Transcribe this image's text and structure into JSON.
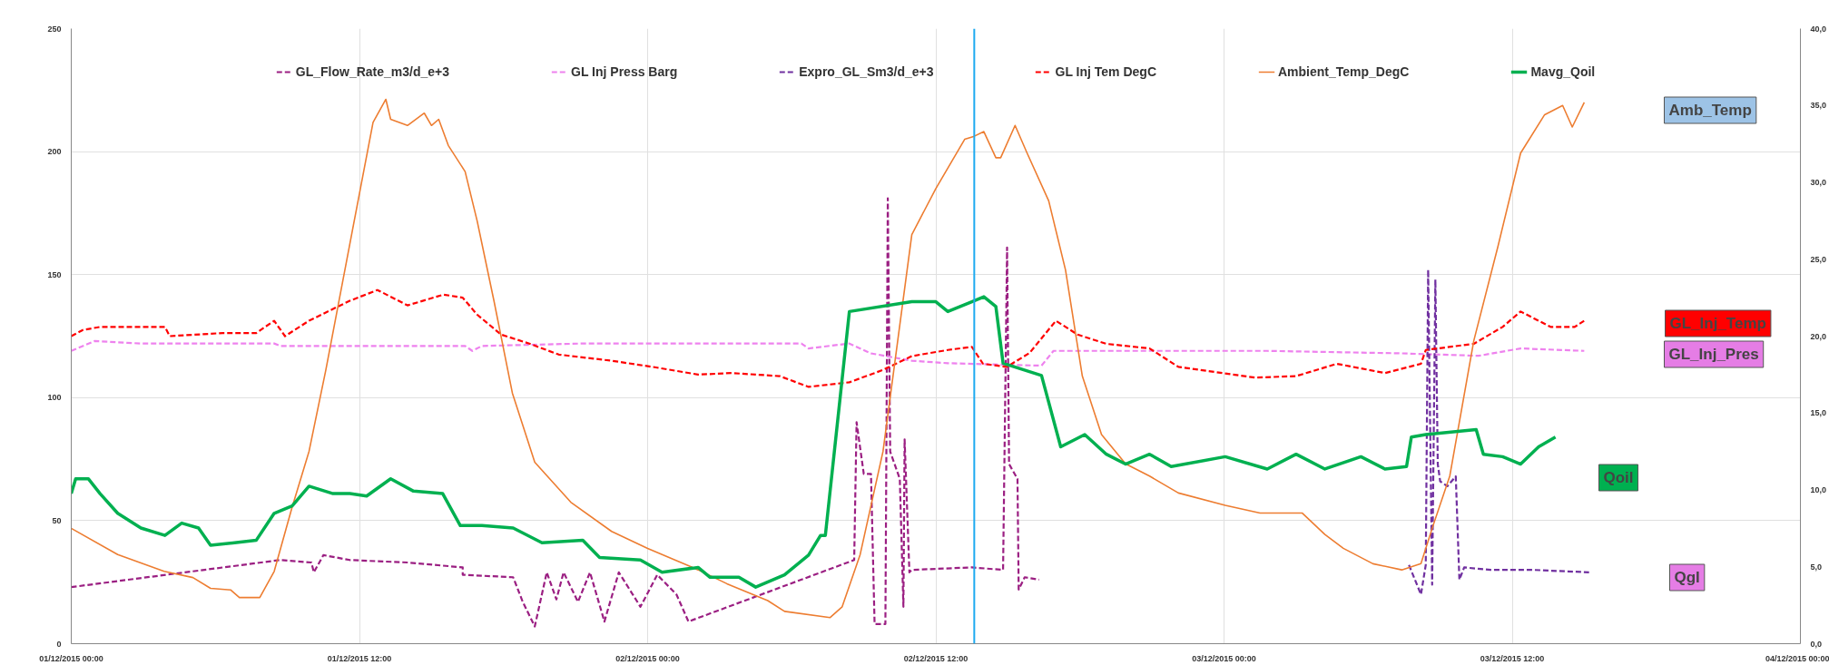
{
  "chart_data": {
    "type": "line",
    "xlim": [
      "2015-12-01T00:00",
      "2015-12-04T00:00"
    ],
    "xticks": [
      {
        "value": "2015-12-01T00:00",
        "label": "01/12/2015 00:00"
      },
      {
        "value": "2015-12-01T12:00",
        "label": "01/12/2015 12:00"
      },
      {
        "value": "2015-12-02T00:00",
        "label": "02/12/2015 00:00"
      },
      {
        "value": "2015-12-02T12:00",
        "label": "02/12/2015 12:00"
      },
      {
        "value": "2015-12-03T00:00",
        "label": "03/12/2015 00:00"
      },
      {
        "value": "2015-12-03T12:00",
        "label": "03/12/2015 12:00"
      },
      {
        "value": "2015-12-04T00:00",
        "label": "04/12/2015 00:00"
      }
    ],
    "ylim": [
      0,
      250
    ],
    "yticks": [
      0,
      50,
      100,
      150,
      200,
      250
    ],
    "y2lim": [
      0,
      40
    ],
    "y2ticks": [
      {
        "value": 0,
        "label": "0,0"
      },
      {
        "value": 5,
        "label": "5,0"
      },
      {
        "value": 10,
        "label": "10,0"
      },
      {
        "value": 15,
        "label": "15,0"
      },
      {
        "value": 20,
        "label": "20,0"
      },
      {
        "value": 25,
        "label": "25,0"
      },
      {
        "value": 30,
        "label": "30,0"
      },
      {
        "value": 35,
        "label": "35,0"
      },
      {
        "value": 40,
        "label": "40,0"
      }
    ],
    "grid": true,
    "legend": "top",
    "marker": "none",
    "series": [
      {
        "name": "GL_Flow_Rate_m3/d_e+3",
        "color": "#9b1f82",
        "line_style": "dashed",
        "x": [
          "2015-12-01T00:00",
          "2015-12-01T08:42",
          "2015-12-01T10:00",
          "2015-12-01T10:06",
          "2015-12-01T10:30",
          "2015-12-01T11:36",
          "2015-12-01T14:00",
          "2015-12-01T16:18",
          "2015-12-01T16:18",
          "2015-12-01T18:24",
          "2015-12-01T18:48",
          "2015-12-01T19:18",
          "2015-12-01T19:48",
          "2015-12-01T20:12",
          "2015-12-01T20:30",
          "2015-12-01T21:06",
          "2015-12-01T21:36",
          "2015-12-01T22:12",
          "2015-12-01T22:48",
          "2015-12-01T23:42",
          "2015-12-02T00:24",
          "2015-12-02T01:12",
          "2015-12-02T01:42",
          "2015-12-02T08:36",
          "2015-12-02T08:42",
          "2015-12-02T09:00",
          "2015-12-02T09:18",
          "2015-12-02T09:27",
          "2015-12-02T09:54",
          "2015-12-02T10:00",
          "2015-12-02T10:06",
          "2015-12-02T10:30",
          "2015-12-02T10:39",
          "2015-12-02T10:42",
          "2015-12-02T10:54",
          "2015-12-02T11:00",
          "2015-12-02T13:30",
          "2015-12-02T14:48",
          "2015-12-02T14:58",
          "2015-12-02T15:03",
          "2015-12-02T15:24",
          "2015-12-02T15:27",
          "2015-12-02T15:42",
          "2015-12-02T16:18"
        ],
        "values": [
          23,
          34,
          33,
          29,
          36,
          34,
          33,
          31,
          28,
          27,
          17,
          7,
          29,
          18,
          29,
          17,
          29,
          9,
          29,
          15,
          28,
          20,
          9,
          34,
          90,
          69,
          69,
          8,
          8,
          181,
          78,
          67,
          15,
          83,
          29,
          30,
          31,
          30,
          161,
          73,
          67,
          22,
          27,
          26
        ]
      },
      {
        "name": "GL Inj Press Barg",
        "color": "#ee82ee",
        "line_style": "dashed",
        "x": [
          "2015-12-01T00:00",
          "2015-12-01T00:58",
          "2015-12-01T02:54",
          "2015-12-01T08:27",
          "2015-12-01T08:42",
          "2015-12-01T12:06",
          "2015-12-01T16:24",
          "2015-12-01T16:42",
          "2015-12-01T17:06",
          "2015-12-01T21:18",
          "2015-12-02T06:24",
          "2015-12-02T06:42",
          "2015-12-02T08:24",
          "2015-12-02T09:18",
          "2015-12-02T11:00",
          "2015-12-02T12:30",
          "2015-12-02T16:24",
          "2015-12-02T16:54",
          "2015-12-03T01:48",
          "2015-12-03T07:24",
          "2015-12-03T10:36",
          "2015-12-03T12:21",
          "2015-12-03T15:00"
        ],
        "values": [
          119,
          123,
          122,
          122,
          121,
          121,
          121,
          119,
          121,
          122,
          122,
          120,
          122,
          118,
          115,
          114,
          113,
          119,
          119,
          118,
          117,
          120,
          119
        ]
      },
      {
        "name": "Expro_GL_Sm3/d_e+3",
        "color": "#7030a0",
        "line_style": "dashed",
        "x": [
          "2015-12-03T07:42",
          "2015-12-03T08:12",
          "2015-12-03T08:24",
          "2015-12-03T08:30",
          "2015-12-03T08:40",
          "2015-12-03T08:48",
          "2015-12-03T08:54",
          "2015-12-03T09:00",
          "2015-12-03T09:18",
          "2015-12-03T09:39",
          "2015-12-03T09:48",
          "2015-12-03T10:00",
          "2015-12-03T11:06",
          "2015-12-03T12:51",
          "2015-12-03T15:12"
        ],
        "values": [
          32,
          20,
          32,
          152,
          24,
          148,
          73,
          66,
          64,
          68,
          26,
          31,
          30,
          30,
          29
        ]
      },
      {
        "name": "GL Inj Tem DegC",
        "color": "#ff0000",
        "line_style": "dashed",
        "axis": "y2",
        "x": [
          "2015-12-01T00:00",
          "2015-12-01T00:29",
          "2015-12-01T01:12",
          "2015-12-01T03:54",
          "2015-12-01T04:06",
          "2015-12-01T06:18",
          "2015-12-01T07:42",
          "2015-12-01T08:27",
          "2015-12-01T08:54",
          "2015-12-01T09:54",
          "2015-12-01T11:36",
          "2015-12-01T12:45",
          "2015-12-01T14:00",
          "2015-12-01T15:30",
          "2015-12-01T16:18",
          "2015-12-01T16:54",
          "2015-12-01T17:54",
          "2015-12-01T19:06",
          "2015-12-01T20:18",
          "2015-12-01T22:30",
          "2015-12-02T00:12",
          "2015-12-02T02:06",
          "2015-12-02T03:30",
          "2015-12-02T05:30",
          "2015-12-02T06:42",
          "2015-12-02T08:24",
          "2015-12-02T09:48",
          "2015-12-02T11:00",
          "2015-12-02T12:30",
          "2015-12-02T13:30",
          "2015-12-02T13:58",
          "2015-12-02T14:57",
          "2015-12-02T15:54",
          "2015-12-02T17:00",
          "2015-12-02T17:54",
          "2015-12-02T19:06",
          "2015-12-02T20:54",
          "2015-12-02T22:06",
          "2015-12-03T01:18",
          "2015-12-03T03:00",
          "2015-12-03T04:42",
          "2015-12-03T06:42",
          "2015-12-03T08:12",
          "2015-12-03T08:24",
          "2015-12-03T10:24",
          "2015-12-03T11:36",
          "2015-12-03T12:21",
          "2015-12-03T13:36",
          "2015-12-03T14:36",
          "2015-12-03T15:00"
        ],
        "values": [
          20.0,
          20.4,
          20.6,
          20.6,
          20.0,
          20.2,
          20.2,
          21.0,
          20.0,
          21.0,
          22.3,
          23.0,
          22.0,
          22.7,
          22.5,
          21.4,
          20.1,
          19.5,
          18.8,
          18.4,
          18.0,
          17.5,
          17.6,
          17.4,
          16.7,
          17.0,
          17.8,
          18.7,
          19.1,
          19.3,
          18.2,
          18.0,
          18.9,
          21.0,
          20.1,
          19.5,
          19.2,
          18.0,
          17.3,
          17.4,
          18.2,
          17.6,
          18.2,
          19.1,
          19.5,
          20.6,
          21.6,
          20.6,
          20.6,
          21.0
        ]
      },
      {
        "name": "Ambient_Temp_DegC",
        "color": "#ed7d31",
        "line_style": "solid",
        "axis": "y2",
        "x": [
          "2015-12-01T00:00",
          "2015-12-01T01:56",
          "2015-12-01T03:52",
          "2015-12-01T05:04",
          "2015-12-01T05:48",
          "2015-12-01T06:38",
          "2015-12-01T07:00",
          "2015-12-01T07:51",
          "2015-12-01T08:27",
          "2015-12-01T09:11",
          "2015-12-01T09:54",
          "2015-12-01T10:36",
          "2015-12-01T11:36",
          "2015-12-01T12:34",
          "2015-12-01T13:06",
          "2015-12-01T13:18",
          "2015-12-01T14:00",
          "2015-12-01T14:42",
          "2015-12-01T15:00",
          "2015-12-01T15:18",
          "2015-12-01T15:42",
          "2015-12-01T16:24",
          "2015-12-01T16:54",
          "2015-12-01T17:36",
          "2015-12-01T18:22",
          "2015-12-01T19:18",
          "2015-12-01T20:48",
          "2015-12-01T22:30",
          "2015-12-02T00:00",
          "2015-12-02T02:06",
          "2015-12-02T03:18",
          "2015-12-02T05:00",
          "2015-12-02T05:42",
          "2015-12-02T07:36",
          "2015-12-02T08:06",
          "2015-12-02T08:51",
          "2015-12-02T09:48",
          "2015-12-02T11:00",
          "2015-12-02T12:00",
          "2015-12-02T13:12",
          "2015-12-02T13:36",
          "2015-12-02T14:00",
          "2015-12-02T14:30",
          "2015-12-02T14:42",
          "2015-12-02T15:18",
          "2015-12-02T15:48",
          "2015-12-02T16:42",
          "2015-12-02T17:24",
          "2015-12-02T18:06",
          "2015-12-02T18:54",
          "2015-12-02T19:54",
          "2015-12-02T20:54",
          "2015-12-02T22:06",
          "2015-12-03T00:03",
          "2015-12-03T01:30",
          "2015-12-03T03:15",
          "2015-12-03T04:12",
          "2015-12-03T04:58",
          "2015-12-03T06:12",
          "2015-12-03T07:24",
          "2015-12-03T08:12",
          "2015-12-03T08:40",
          "2015-12-03T09:24",
          "2015-12-03T10:24",
          "2015-12-03T11:24",
          "2015-12-03T12:21",
          "2015-12-03T13:21",
          "2015-12-03T14:06",
          "2015-12-03T14:30",
          "2015-12-03T15:00"
        ],
        "values": [
          7.5,
          5.8,
          4.7,
          4.3,
          3.6,
          3.5,
          3.0,
          3.0,
          4.7,
          8.8,
          12.5,
          17.8,
          26.0,
          33.9,
          35.4,
          34.1,
          33.7,
          34.5,
          33.7,
          34.1,
          32.4,
          30.7,
          27.5,
          22.3,
          16.3,
          11.8,
          9.2,
          7.3,
          6.2,
          4.8,
          3.9,
          2.8,
          2.1,
          1.7,
          2.4,
          5.8,
          12.5,
          26.6,
          29.6,
          32.8,
          33.0,
          33.3,
          31.6,
          31.6,
          33.7,
          31.9,
          28.8,
          24.3,
          17.4,
          13.6,
          11.7,
          10.9,
          9.8,
          9.0,
          8.5,
          8.5,
          7.1,
          6.2,
          5.2,
          4.8,
          5.2,
          7.5,
          10.9,
          19.7,
          25.8,
          31.9,
          34.4,
          35.0,
          33.6,
          35.2
        ]
      },
      {
        "name": "Mavg_Qoil",
        "color": "#00b050",
        "line_style": "solid",
        "x": [
          "2015-12-01T00:00",
          "2015-12-01T00:11",
          "2015-12-01T00:43",
          "2015-12-01T01:12",
          "2015-12-01T01:56",
          "2015-12-01T02:54",
          "2015-12-01T03:54",
          "2015-12-01T04:36",
          "2015-12-01T05:18",
          "2015-12-01T05:48",
          "2015-12-01T06:48",
          "2015-12-01T07:42",
          "2015-12-01T08:27",
          "2015-12-01T09:12",
          "2015-12-01T09:54",
          "2015-12-01T10:54",
          "2015-12-01T11:36",
          "2015-12-01T12:18",
          "2015-12-01T13:18",
          "2015-12-01T14:15",
          "2015-12-01T15:28",
          "2015-12-01T16:12",
          "2015-12-01T17:06",
          "2015-12-01T18:24",
          "2015-12-01T19:36",
          "2015-12-01T21:18",
          "2015-12-01T22:00",
          "2015-12-01T23:42",
          "2015-12-02T00:36",
          "2015-12-02T02:06",
          "2015-12-02T02:36",
          "2015-12-02T03:48",
          "2015-12-02T04:30",
          "2015-12-02T05:42",
          "2015-12-02T06:42",
          "2015-12-02T07:12",
          "2015-12-02T07:24",
          "2015-12-02T08:24",
          "2015-12-02T11:00",
          "2015-12-02T12:00",
          "2015-12-02T12:30",
          "2015-12-02T13:30",
          "2015-12-02T14:00",
          "2015-12-02T14:30",
          "2015-12-02T14:48",
          "2015-12-02T16:24",
          "2015-12-02T17:12",
          "2015-12-02T18:12",
          "2015-12-02T19:06",
          "2015-12-02T19:54",
          "2015-12-02T20:54",
          "2015-12-02T21:48",
          "2015-12-03T00:03",
          "2015-12-03T01:48",
          "2015-12-03T03:00",
          "2015-12-03T04:12",
          "2015-12-03T05:42",
          "2015-12-03T06:42",
          "2015-12-03T07:36",
          "2015-12-03T07:48",
          "2015-12-03T08:24",
          "2015-12-03T10:30",
          "2015-12-03T10:48",
          "2015-12-03T11:36",
          "2015-12-03T12:21",
          "2015-12-03T13:06",
          "2015-12-03T13:48"
        ],
        "values": [
          61,
          67,
          67,
          61,
          53,
          47,
          44,
          49,
          47,
          40,
          41,
          42,
          53,
          56,
          64,
          61,
          61,
          60,
          67,
          62,
          61,
          48,
          48,
          47,
          41,
          42,
          35,
          34,
          29,
          31,
          27,
          27,
          23,
          28,
          36,
          44,
          44,
          135,
          139,
          139,
          135,
          139,
          141,
          137,
          114,
          109,
          80,
          85,
          77,
          73,
          77,
          72,
          76,
          71,
          77,
          71,
          76,
          71,
          72,
          84,
          85,
          87,
          77,
          76,
          73,
          80,
          84
        ]
      }
    ],
    "ref_lines": [
      {
        "axis": "x",
        "value": "2015-12-02T13:36",
        "color": "#1eaaf0"
      }
    ],
    "annotations": [
      "Amb_Temp",
      "GL_Inj_Temp",
      "GL_Inj_Pres",
      "Qoil",
      "Qgl"
    ]
  }
}
